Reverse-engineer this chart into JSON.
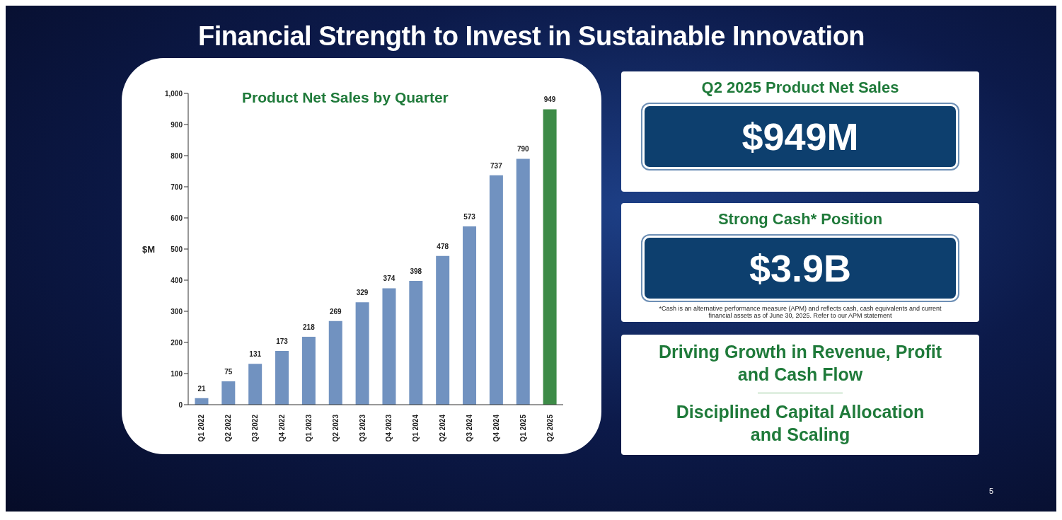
{
  "chart_data": [
    {
      "type": "bar",
      "title": "Product Net Sales by Quarter",
      "ylabel": "$M",
      "categories": [
        "Q1 2022",
        "Q2 2022",
        "Q3 2022",
        "Q4 2022",
        "Q1 2023",
        "Q2 2023",
        "Q3 2023",
        "Q4 2023",
        "Q1 2024",
        "Q2 2024",
        "Q3 2024",
        "Q4 2024",
        "Q1 2025",
        "Q2 2025"
      ],
      "values": [
        21,
        75,
        131,
        173,
        218,
        269,
        329,
        374,
        398,
        478,
        573,
        737,
        790,
        949
      ],
      "colors": [
        "#7192c0",
        "#7192c0",
        "#7192c0",
        "#7192c0",
        "#7192c0",
        "#7192c0",
        "#7192c0",
        "#7192c0",
        "#7192c0",
        "#7192c0",
        "#7192c0",
        "#7192c0",
        "#7192c0",
        "#3d8b47"
      ],
      "ylim": [
        0,
        1000
      ],
      "yticks": [
        0,
        100,
        200,
        300,
        400,
        500,
        600,
        700,
        800,
        900,
        {
          "value": 1000,
          "label": "1,000"
        }
      ],
      "data_labels": true
    },
    {
      "type": "other",
      "title": "Financial Strength to Invest in Sustainable Innovation",
      "annotations": [
        "Q2 2025 Product Net Sales",
        "$949M",
        "Strong Cash* Position",
        "$3.9B",
        "*Cash is an alternative performance measure (APM) and reflects cash, cash equivalents and current financial assets as of June 30, 2025. Refer to our APM statement",
        "Driving Growth in Revenue, Profit and Cash Flow",
        "Disciplined Capital Allocation and Scaling",
        "5"
      ]
    }
  ]
}
